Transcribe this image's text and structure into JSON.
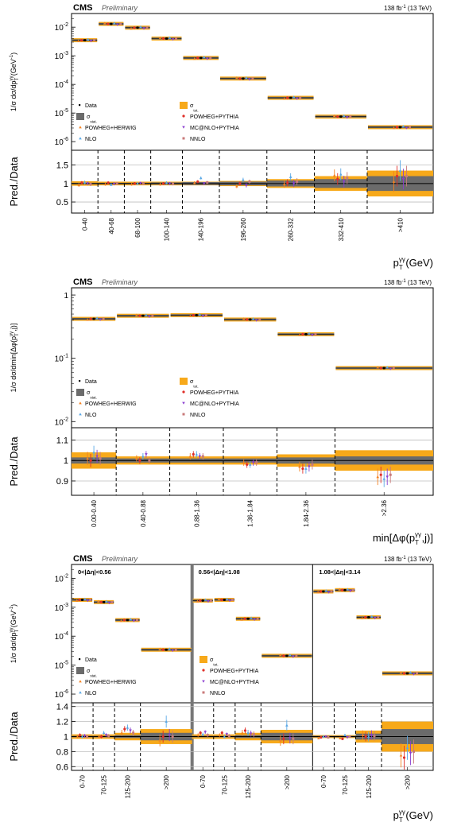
{
  "header": {
    "experiment": "CMS",
    "status": "Preliminary",
    "lumi": "138 fb",
    "lumi_exp": "-1",
    "energy": "(13 TeV)"
  },
  "legend": {
    "data": "Data",
    "stat": "σ",
    "stat_sub": "stat.",
    "tot": "σ",
    "tot_sub": "tot.",
    "powheg_herwig": "POWHEG+HERWIG",
    "powheg_pythia": "POWHEG+PYTHIA",
    "nlo": "NLO",
    "mcatnlo_pythia": "MC@NLO+PYTHIA",
    "nnlo": "NNLO"
  },
  "colors": {
    "total_band": "#f7a91a",
    "stat_band": "#6b6b6b",
    "data": "#000000",
    "powheg_herwig": "#f58220",
    "powheg_pythia": "#e0302a",
    "nlo": "#5aa8e6",
    "mcatnlo_pythia": "#8b3fd0",
    "nnlo": "#c97a7a"
  },
  "ratio_ylabel": "Pred./Data",
  "chart_data": [
    {
      "type": "scatter",
      "title": "",
      "ylabel": "1/σ dσ/dp",
      "ylabel_sub": "T",
      "ylabel_sup": "γγ",
      "ylabel_unit": "(GeV",
      "ylabel_unit_exp": "-1",
      "xlabel": "p",
      "xlabel_sub": "T",
      "xlabel_sup": "γγ",
      "xlabel_unit": "(GeV)",
      "yscale": "log",
      "ylim": [
        5e-07,
        0.03
      ],
      "y_ticks": [
        {
          "base": "10",
          "exp": "-2",
          "v": 0.01
        },
        {
          "base": "10",
          "exp": "-3",
          "v": 0.001
        },
        {
          "base": "10",
          "exp": "-4",
          "v": 0.0001
        },
        {
          "base": "10",
          "exp": "-5",
          "v": 1e-05
        },
        {
          "base": "10",
          "exp": "-6",
          "v": 1e-06
        }
      ],
      "categories": [
        "0-40",
        "40-68",
        "68-100",
        "100-140",
        "140-196",
        "196-260",
        "260-332",
        "332-410",
        ">410"
      ],
      "bin_widths": [
        1,
        1,
        1,
        1.2,
        1.4,
        1.8,
        1.8,
        2,
        2.5
      ],
      "values": [
        0.0035,
        0.013,
        0.0096,
        0.004,
        0.00084,
        0.00016,
        3.4e-05,
        7.5e-06,
        3.2e-06
      ],
      "ratio_ylim": [
        0.2,
        1.9
      ],
      "ratio_ticks": [
        "0.5",
        "1",
        "1.5"
      ],
      "ratio_tick_vals": [
        0.5,
        1,
        1.5
      ],
      "ratio_grid": [
        0.5,
        1.5
      ],
      "ratio_tot": [
        0.06,
        0.05,
        0.05,
        0.05,
        0.05,
        0.07,
        0.12,
        0.2,
        0.35
      ],
      "ratio_stat": [
        0.02,
        0.02,
        0.02,
        0.03,
        0.04,
        0.05,
        0.08,
        0.12,
        0.2
      ],
      "ratio_series": [
        {
          "name": "POWHEG+HERWIG",
          "values": [
            0.96,
            0.98,
            0.98,
            0.98,
            1.02,
            0.93,
            0.98,
            1.22,
            1.05
          ]
        },
        {
          "name": "POWHEG+PYTHIA",
          "values": [
            1.02,
            1.02,
            1.0,
            1.0,
            1.05,
            1.0,
            1.02,
            1.12,
            1.2
          ]
        },
        {
          "name": "NLO",
          "values": [
            1.03,
            0.97,
            1.0,
            1.02,
            1.15,
            1.1,
            1.18,
            1.25,
            1.35
          ]
        },
        {
          "name": "MC@NLO+PYTHIA",
          "values": [
            1.0,
            0.99,
            1.01,
            1.0,
            1.0,
            0.95,
            1.0,
            1.05,
            1.12
          ]
        },
        {
          "name": "NNLO",
          "values": [
            0.98,
            1.0,
            1.0,
            0.99,
            1.03,
            1.05,
            1.05,
            1.15,
            1.2
          ]
        }
      ]
    },
    {
      "type": "scatter",
      "title": "",
      "ylabel": "1/σ dσ/dmin[Δφ(p",
      "ylabel_sub": "T",
      "ylabel_sup": "γγ",
      "ylabel_unit": ",j)]",
      "ylabel_unit_exp": "",
      "xlabel": "min[Δφ(p",
      "xlabel_sub": "T",
      "xlabel_sup": "γγ",
      "xlabel_unit": ",j)]",
      "yscale": "log",
      "ylim": [
        0.008,
        1.3
      ],
      "y_ticks": [
        {
          "base": "1",
          "exp": "",
          "v": 1
        },
        {
          "base": "10",
          "exp": "-1",
          "v": 0.1
        },
        {
          "base": "10",
          "exp": "-2",
          "v": 0.01
        }
      ],
      "categories": [
        "0.00-0.40",
        "0.40-0.88",
        "0.88-1.36",
        "1.36-1.84",
        "1.84-2.36",
        ">2.36"
      ],
      "bin_widths": [
        1,
        1.2,
        1.2,
        1.2,
        1.3,
        2.2
      ],
      "values": [
        0.42,
        0.47,
        0.48,
        0.41,
        0.24,
        0.07
      ],
      "ratio_ylim": [
        0.83,
        1.16
      ],
      "ratio_ticks": [
        "0.9",
        "1",
        "1.1"
      ],
      "ratio_tick_vals": [
        0.9,
        1.0,
        1.1
      ],
      "ratio_grid": [
        0.9,
        1.1
      ],
      "ratio_tot": [
        0.04,
        0.02,
        0.02,
        0.02,
        0.03,
        0.05
      ],
      "ratio_stat": [
        0.015,
        0.01,
        0.01,
        0.01,
        0.015,
        0.02
      ],
      "ratio_series": [
        {
          "name": "POWHEG+HERWIG",
          "values": [
            1.01,
            1.01,
            1.02,
            0.99,
            0.97,
            0.92
          ]
        },
        {
          "name": "POWHEG+PYTHIA",
          "values": [
            1.0,
            1.0,
            1.03,
            0.98,
            0.96,
            0.93
          ]
        },
        {
          "name": "NLO",
          "values": [
            1.04,
            1.02,
            1.03,
            0.98,
            0.96,
            0.91
          ]
        },
        {
          "name": "MC@NLO+PYTHIA",
          "values": [
            1.02,
            1.03,
            1.02,
            0.99,
            0.97,
            0.92
          ]
        },
        {
          "name": "NNLO",
          "values": [
            1.01,
            1.0,
            1.02,
            0.99,
            0.98,
            0.93
          ]
        }
      ]
    },
    {
      "type": "scatter",
      "title": "",
      "ylabel": "1/σ dσ/dp",
      "ylabel_sub": "T",
      "ylabel_sup": "γγ",
      "ylabel_unit": "(GeV",
      "ylabel_unit_exp": "-1",
      "xlabel": "p",
      "xlabel_sub": "T",
      "xlabel_sup": "γγ",
      "xlabel_unit": "(GeV)",
      "yscale": "log",
      "ylim": [
        5e-07,
        0.03
      ],
      "y_ticks": [
        {
          "base": "10",
          "exp": "-2",
          "v": 0.01
        },
        {
          "base": "10",
          "exp": "-3",
          "v": 0.001
        },
        {
          "base": "10",
          "exp": "-4",
          "v": 0.0001
        },
        {
          "base": "10",
          "exp": "-5",
          "v": 1e-05
        },
        {
          "base": "10",
          "exp": "-6",
          "v": 1e-06
        }
      ],
      "regions": [
        "0<|Δη|<0.56",
        "0.56<|Δη|<1.08",
        "1.08<|Δη|<3.14"
      ],
      "categories": [
        "0-70",
        "70-125",
        "125-200",
        ">200",
        "0-70",
        "70-125",
        "125-200",
        ">200",
        "0-70",
        "70-125",
        "125-200",
        ">200"
      ],
      "bin_widths": [
        1,
        1,
        1.2,
        2.4,
        1,
        1,
        1.2,
        2.4,
        1,
        1,
        1.2,
        2.4
      ],
      "values": [
        0.0018,
        0.0015,
        0.00036,
        3.4e-05,
        0.0017,
        0.0018,
        0.0004,
        2.1e-05,
        0.0035,
        0.0039,
        0.00045,
        5.2e-06
      ],
      "ratio_ylim": [
        0.55,
        1.45
      ],
      "ratio_ticks": [
        "0.6",
        "0.8",
        "1",
        "1.2",
        "1.4"
      ],
      "ratio_tick_vals": [
        0.6,
        0.8,
        1.0,
        1.2,
        1.4
      ],
      "ratio_grid": [
        0.6,
        0.8,
        1.2,
        1.4
      ],
      "ratio_tot": [
        0.03,
        0.03,
        0.05,
        0.1,
        0.03,
        0.03,
        0.05,
        0.09,
        0.02,
        0.02,
        0.08,
        0.2
      ],
      "ratio_stat": [
        0.01,
        0.01,
        0.02,
        0.05,
        0.01,
        0.01,
        0.02,
        0.05,
        0.01,
        0.01,
        0.04,
        0.1
      ],
      "ratio_series": [
        {
          "name": "POWHEG+HERWIG",
          "values": [
            1.0,
            1.0,
            1.05,
            0.95,
            1.02,
            1.02,
            1.05,
            0.95,
            0.98,
            0.98,
            1.02,
            0.75
          ]
        },
        {
          "name": "POWHEG+PYTHIA",
          "values": [
            1.02,
            1.0,
            1.1,
            1.0,
            1.05,
            1.05,
            1.08,
            0.97,
            0.99,
            0.97,
            1.0,
            0.72
          ]
        },
        {
          "name": "NLO",
          "values": [
            1.0,
            1.05,
            1.12,
            1.2,
            1.03,
            1.0,
            1.05,
            1.15,
            1.0,
            1.02,
            1.0,
            0.85
          ]
        },
        {
          "name": "MC@NLO+PYTHIA",
          "values": [
            1.01,
            1.02,
            1.08,
            1.02,
            1.06,
            1.03,
            1.04,
            0.98,
            1.0,
            0.99,
            1.02,
            0.78
          ]
        },
        {
          "name": "NNLO",
          "values": [
            1.0,
            1.01,
            1.05,
            1.0,
            1.02,
            1.01,
            1.03,
            0.97,
            0.99,
            1.0,
            1.01,
            0.8
          ]
        }
      ]
    }
  ]
}
